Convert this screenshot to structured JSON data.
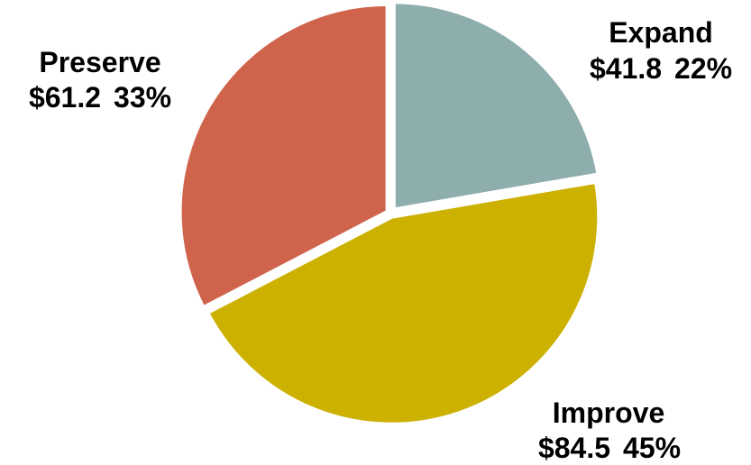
{
  "chart_data": {
    "type": "pie",
    "title": "",
    "slices": [
      {
        "name": "Expand",
        "value_label": "$41.8",
        "percent_label": "22%",
        "value": 41.8,
        "color": "#8eadad"
      },
      {
        "name": "Improve",
        "value_label": "$84.5",
        "percent_label": "45%",
        "value": 84.5,
        "color": "#ccb100"
      },
      {
        "name": "Preserve",
        "value_label": "$61.2",
        "percent_label": "33%",
        "value": 61.2,
        "color": "#d0634b"
      }
    ]
  }
}
